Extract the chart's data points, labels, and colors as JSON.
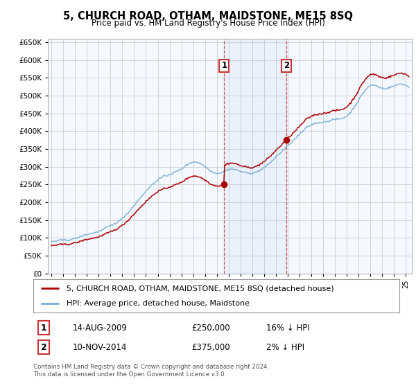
{
  "title": "5, CHURCH ROAD, OTHAM, MAIDSTONE, ME15 8SQ",
  "subtitle": "Price paid vs. HM Land Registry's House Price Index (HPI)",
  "hpi_label": "HPI: Average price, detached house, Maidstone",
  "property_label": "5, CHURCH ROAD, OTHAM, MAIDSTONE, ME15 8SQ (detached house)",
  "footer": "Contains HM Land Registry data © Crown copyright and database right 2024.\nThis data is licensed under the Open Government Licence v3.0.",
  "sale1": {
    "date": "14-AUG-2009",
    "price": 250000,
    "label": "1",
    "pct": "16% ↓ HPI"
  },
  "sale2": {
    "date": "10-NOV-2014",
    "price": 375000,
    "label": "2",
    "pct": "2% ↓ HPI"
  },
  "ylim": [
    0,
    660000
  ],
  "yticks": [
    0,
    50000,
    100000,
    150000,
    200000,
    250000,
    300000,
    350000,
    400000,
    450000,
    500000,
    550000,
    600000,
    650000
  ],
  "bg_color": "#ffffff",
  "plot_bg_color": "#f5f8ff",
  "grid_color": "#cccccc",
  "hpi_color": "#7aadd4",
  "property_color": "#aa0000",
  "sale1_year": 2009.62,
  "sale2_year": 2014.87,
  "sale1_price": 250000,
  "sale2_price": 375000,
  "xstart": 1995.0,
  "xend": 2025.3
}
